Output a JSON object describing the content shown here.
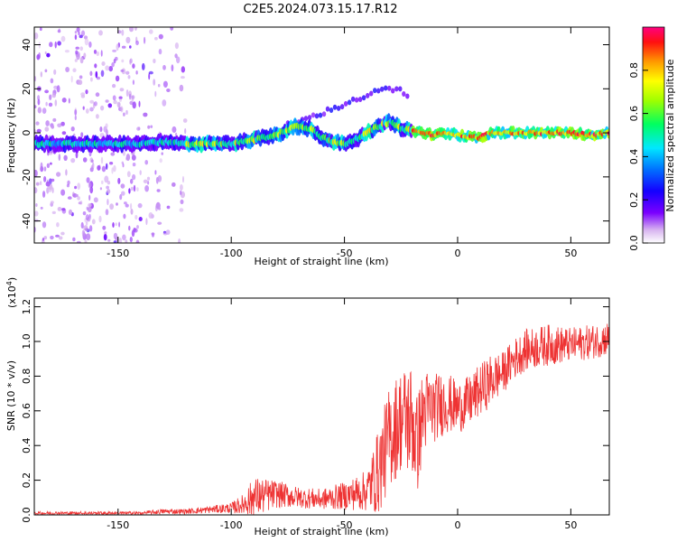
{
  "title": "C2E5.2024.073.15.17.R12",
  "chart_data": [
    {
      "type": "heatmap",
      "name": "spectrogram",
      "xlabel": "Height of straight line (km)",
      "ylabel": "Frequency (Hz)",
      "xlim": [
        -187,
        67
      ],
      "ylim": [
        -50,
        48
      ],
      "xticks": [
        -150,
        -100,
        -50,
        0,
        50
      ],
      "yticks": [
        -40,
        -20,
        0,
        20,
        40
      ],
      "colorbar": {
        "label": "Normalized spectral amplitude",
        "range": [
          0,
          1
        ],
        "ticks": [
          0.0,
          0.2,
          0.4,
          0.6,
          0.8
        ],
        "tick_labels": [
          "0.0",
          "0.2",
          "0.4",
          "0.6",
          "0.8"
        ]
      },
      "main_trace": {
        "x": [
          -187,
          -170,
          -150,
          -140,
          -130,
          -120,
          -110,
          -100,
          -90,
          -80,
          -72,
          -65,
          -60,
          -55,
          -50,
          -45,
          -40,
          -35,
          -30,
          -25,
          -20,
          -15,
          -10,
          -5,
          0,
          5,
          10,
          15,
          20,
          30,
          40,
          50,
          60,
          67
        ],
        "freq": [
          -5,
          -5,
          -5,
          -5,
          -4,
          -5,
          -5,
          -5,
          -3,
          -1,
          3,
          2,
          -2,
          -4,
          -5,
          -3,
          0,
          3,
          5,
          2,
          1,
          0,
          -1,
          0,
          -1,
          -2,
          -2,
          0,
          0,
          0,
          0,
          0,
          -1,
          0
        ]
      },
      "secondary_trace": {
        "x": [
          -75,
          -70,
          -65,
          -60,
          -55,
          -50,
          -45,
          -40,
          -35,
          -30,
          -25,
          -22
        ],
        "freq": [
          4,
          5,
          7,
          9,
          11,
          13,
          15,
          17,
          19,
          20,
          19,
          16
        ]
      },
      "noise_region_x": [
        -187,
        -120
      ]
    },
    {
      "type": "line",
      "name": "snr",
      "xlabel": "Height of straight line (km)",
      "ylabel": "SNR (10 * v/v)",
      "y_multiplier_label": "(x10",
      "y_multiplier_exp": "4",
      "y_multiplier_close": ")",
      "xlim": [
        -187,
        67
      ],
      "ylim": [
        0,
        1.25
      ],
      "xticks": [
        -150,
        -100,
        -50,
        0,
        50
      ],
      "yticks": [
        0.0,
        0.2,
        0.4,
        0.6,
        0.8,
        1.0,
        1.2
      ],
      "ytick_labels": [
        "0.0",
        "0.2",
        "0.4",
        "0.6",
        "0.8",
        "1.0",
        "1.2"
      ],
      "series_color": "#ee3333",
      "envelope": {
        "x": [
          -187,
          -140,
          -130,
          -120,
          -110,
          -100,
          -95,
          -90,
          -80,
          -70,
          -60,
          -50,
          -40,
          -35,
          -30,
          -25,
          -20,
          -18,
          -15,
          -10,
          -5,
          0,
          5,
          10,
          15,
          20,
          25,
          30,
          40,
          50,
          60,
          67
        ],
        "mean": [
          0.01,
          0.01,
          0.02,
          0.02,
          0.03,
          0.04,
          0.06,
          0.1,
          0.12,
          0.1,
          0.09,
          0.11,
          0.14,
          0.25,
          0.45,
          0.55,
          0.55,
          0.4,
          0.6,
          0.62,
          0.65,
          0.62,
          0.65,
          0.72,
          0.78,
          0.82,
          0.9,
          0.95,
          0.98,
          0.98,
          1.0,
          1.02
        ],
        "amp": [
          0.01,
          0.01,
          0.015,
          0.015,
          0.02,
          0.03,
          0.06,
          0.12,
          0.08,
          0.06,
          0.06,
          0.08,
          0.12,
          0.25,
          0.3,
          0.3,
          0.35,
          0.3,
          0.25,
          0.2,
          0.18,
          0.15,
          0.15,
          0.15,
          0.15,
          0.12,
          0.12,
          0.12,
          0.12,
          0.1,
          0.1,
          0.1
        ]
      }
    }
  ]
}
